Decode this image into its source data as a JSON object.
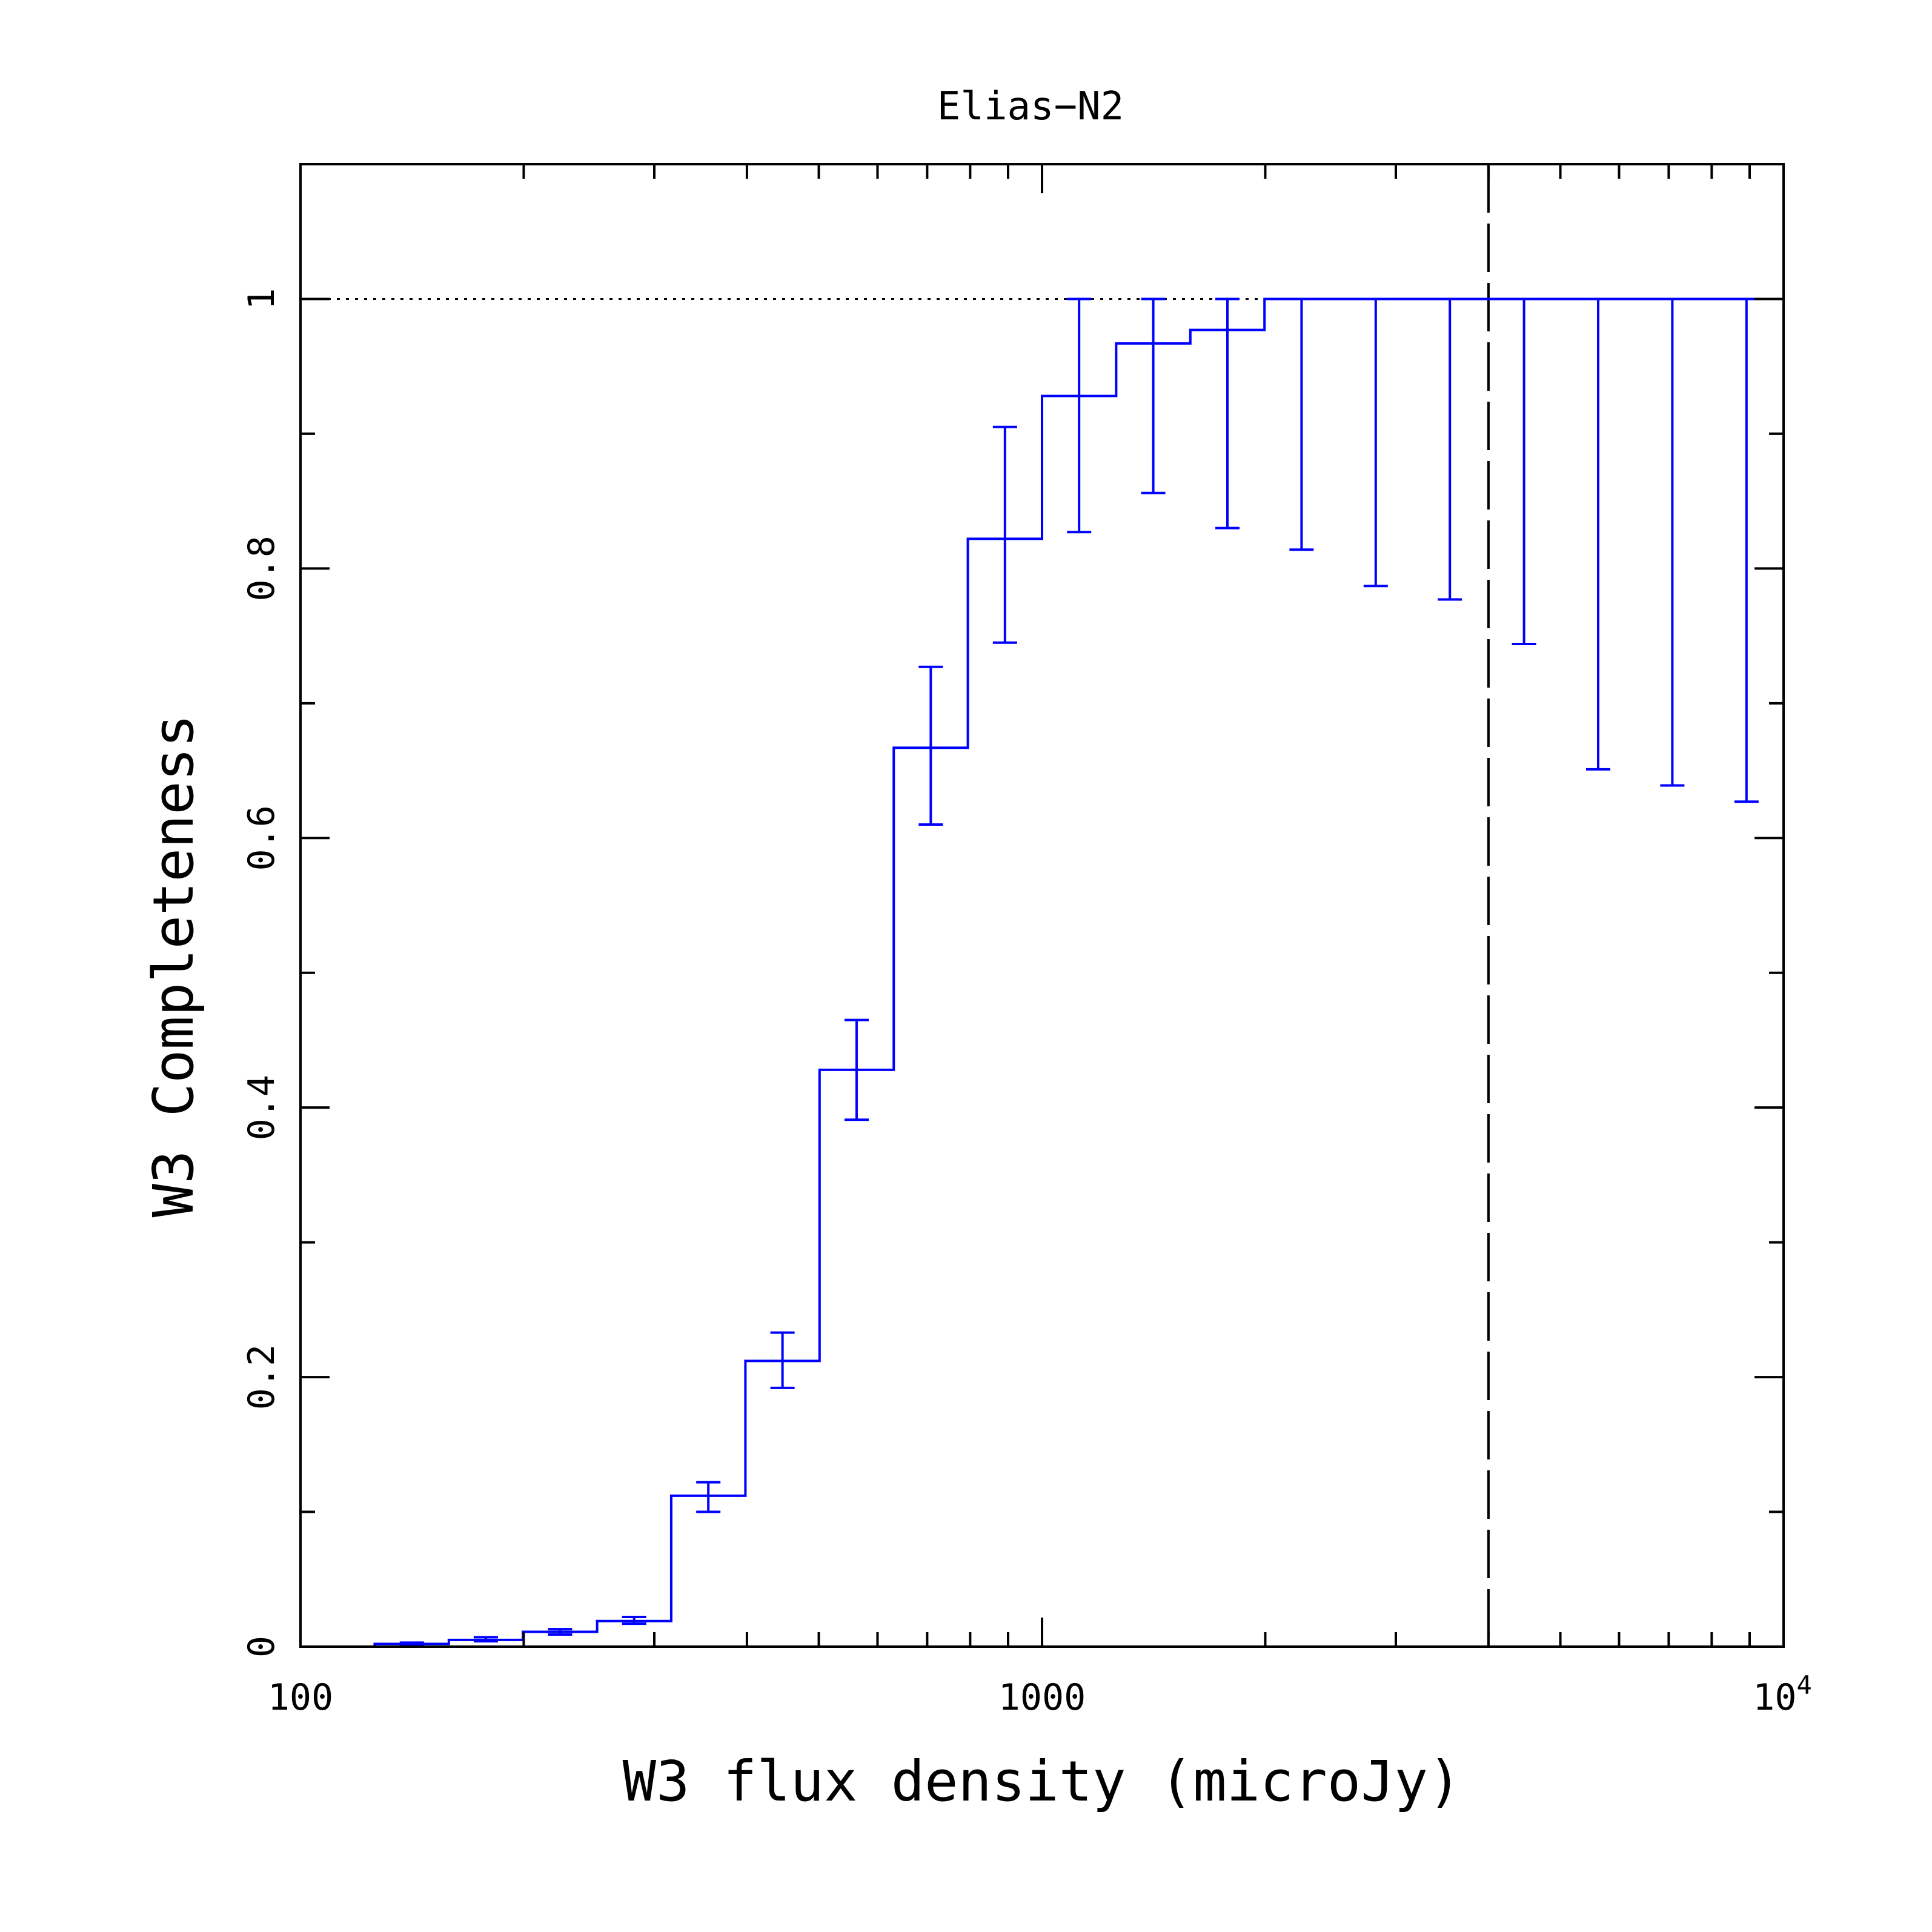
{
  "chart_data": {
    "type": "line",
    "title": "Elias−N2",
    "xlabel": "W3 flux density (microJy)",
    "ylabel": "W3 Completeness",
    "xscale": "log",
    "xlim": [
      100,
      10000
    ],
    "ylim": [
      0,
      1.1
    ],
    "grid": false,
    "xticks": [
      {
        "value": 100,
        "label": "100"
      },
      {
        "value": 1000,
        "label": "1000"
      },
      {
        "value": 10000,
        "label_base": "10",
        "label_exp": "4"
      }
    ],
    "yticks": [
      {
        "value": 0,
        "label": "0"
      },
      {
        "value": 0.2,
        "label": "0.2"
      },
      {
        "value": 0.4,
        "label": "0.4"
      },
      {
        "value": 0.6,
        "label": "0.6"
      },
      {
        "value": 0.8,
        "label": "0.8"
      },
      {
        "value": 1,
        "label": "1"
      }
    ],
    "reference_line_y": 1,
    "vertical_line_x": 4000,
    "colors": {
      "series": "#0000ff",
      "axes": "#000000",
      "reference_line": "#000000",
      "vertical_line": "#000000"
    },
    "series": [
      {
        "style": "step-histogram",
        "bin_edges": [
          100,
          125.9,
          158.5,
          199.5,
          251.2,
          316.2,
          398.1,
          501.2,
          631,
          794.3,
          1000,
          1258.9,
          1584.9,
          1995.3,
          2511.9,
          3162.3,
          3981.1,
          5011.9,
          6309.6,
          7943.3,
          10000
        ],
        "x": [
          112.2,
          141.3,
          177.8,
          223.9,
          281.8,
          354.8,
          446.7,
          562.3,
          707.9,
          891.3,
          1122,
          1412.5,
          1778.3,
          2238.7,
          2818.4,
          3548.1,
          4466.8,
          5623.4,
          7079.5,
          8912.5
        ],
        "values": [
          0,
          0.002,
          0.005,
          0.011,
          0.019,
          0.112,
          0.212,
          0.428,
          0.667,
          0.822,
          0.928,
          0.967,
          0.977,
          1,
          1,
          1,
          1,
          1,
          1,
          1
        ],
        "err_low": [
          null,
          0.001,
          0.004,
          0.009,
          0.017,
          0.1,
          0.192,
          0.391,
          0.61,
          0.745,
          0.827,
          0.856,
          0.83,
          0.814,
          0.787,
          0.777,
          0.744,
          0.651,
          0.639,
          0.627
        ],
        "err_high": [
          null,
          0.003,
          0.007,
          0.013,
          0.022,
          0.122,
          0.233,
          0.465,
          0.727,
          0.905,
          1,
          1,
          1,
          1,
          1,
          1,
          1,
          1,
          1,
          1
        ]
      }
    ]
  }
}
